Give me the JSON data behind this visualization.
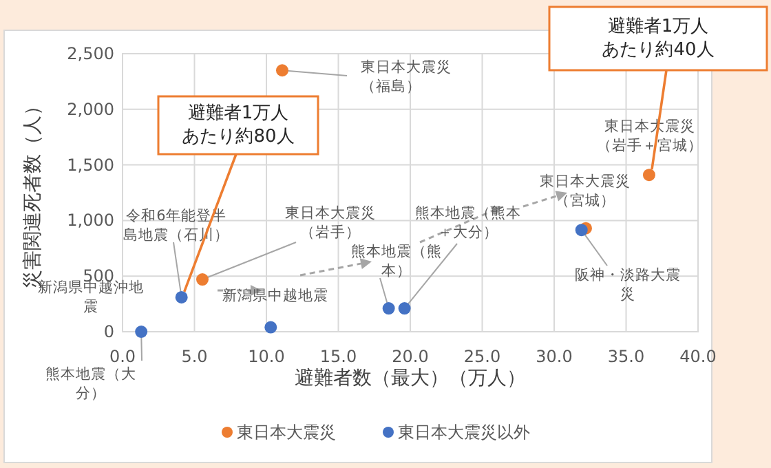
{
  "chart_data": {
    "type": "scatter",
    "xlabel": "避難者数（最大）（万人）",
    "ylabel": "災害関連死者数（人）",
    "series": [
      {
        "name": "東日本大震災",
        "color": "#ed7d31",
        "x": [
          11.1,
          5.55,
          36.6,
          32.2
        ],
        "values": [
          2350,
          470,
          1410,
          930
        ]
      },
      {
        "name": "東日本大震災以外",
        "color": "#4472c4",
        "x": [
          31.9,
          1.3,
          4.1,
          10.3,
          18.5,
          19.6
        ],
        "values": [
          915,
          0,
          310,
          40,
          210,
          210
        ]
      }
    ],
    "xlim": [
      0,
      40
    ],
    "xticks": [
      {
        "value": 0,
        "label": "0.0"
      },
      {
        "value": 5,
        "label": "5.0"
      },
      {
        "value": 10,
        "label": "10.0"
      },
      {
        "value": 15,
        "label": "15.0"
      },
      {
        "value": 20,
        "label": "20.0"
      },
      {
        "value": 25,
        "label": "25.0"
      },
      {
        "value": 30,
        "label": "30.0"
      },
      {
        "value": 35,
        "label": "35.0"
      },
      {
        "value": 40,
        "label": "40.0"
      }
    ],
    "ylim": [
      0,
      2500
    ],
    "yticks": [
      0,
      500,
      {
        "value": 1000,
        "label": "1,000"
      },
      {
        "value": 1500,
        "label": "1,500"
      },
      {
        "value": 2000,
        "label": "2,000"
      },
      {
        "value": 2500,
        "label": "2,500"
      }
    ],
    "grid": true,
    "legend": "bottom",
    "marker": "circle",
    "annotations": [
      {
        "text": "東日本大震災（福島）",
        "x": 11.1,
        "y": 2350
      },
      {
        "text": "令和6年能登半島地震（石川）",
        "x": 4.1,
        "y": 310
      },
      {
        "text": "東日本大震災（岩手）",
        "x": 5.55,
        "y": 470
      },
      {
        "text": "熊本地震（熊本＋大分）",
        "x": 19.6,
        "y": 210
      },
      "東日本大震災（岩手＋宮城）",
      "東日本大震災（宮城）",
      {
        "text": "阪神・淡路大震災",
        "x": 31.9,
        "y": 915
      },
      {
        "text": "熊本地震（熊本）",
        "x": 18.5,
        "y": 210
      },
      "新潟県中越沖地震",
      "新潟県中越地震",
      {
        "text": "熊本地震（大分）",
        "x": 1.3,
        "y": 0
      },
      {
        "text": "避難者1万人あたり約80人",
        "x": 4.1,
        "y": 310
      },
      {
        "text": "避難者1万人あたり約40人",
        "x": 36.6,
        "y": 1410
      }
    ]
  }
}
